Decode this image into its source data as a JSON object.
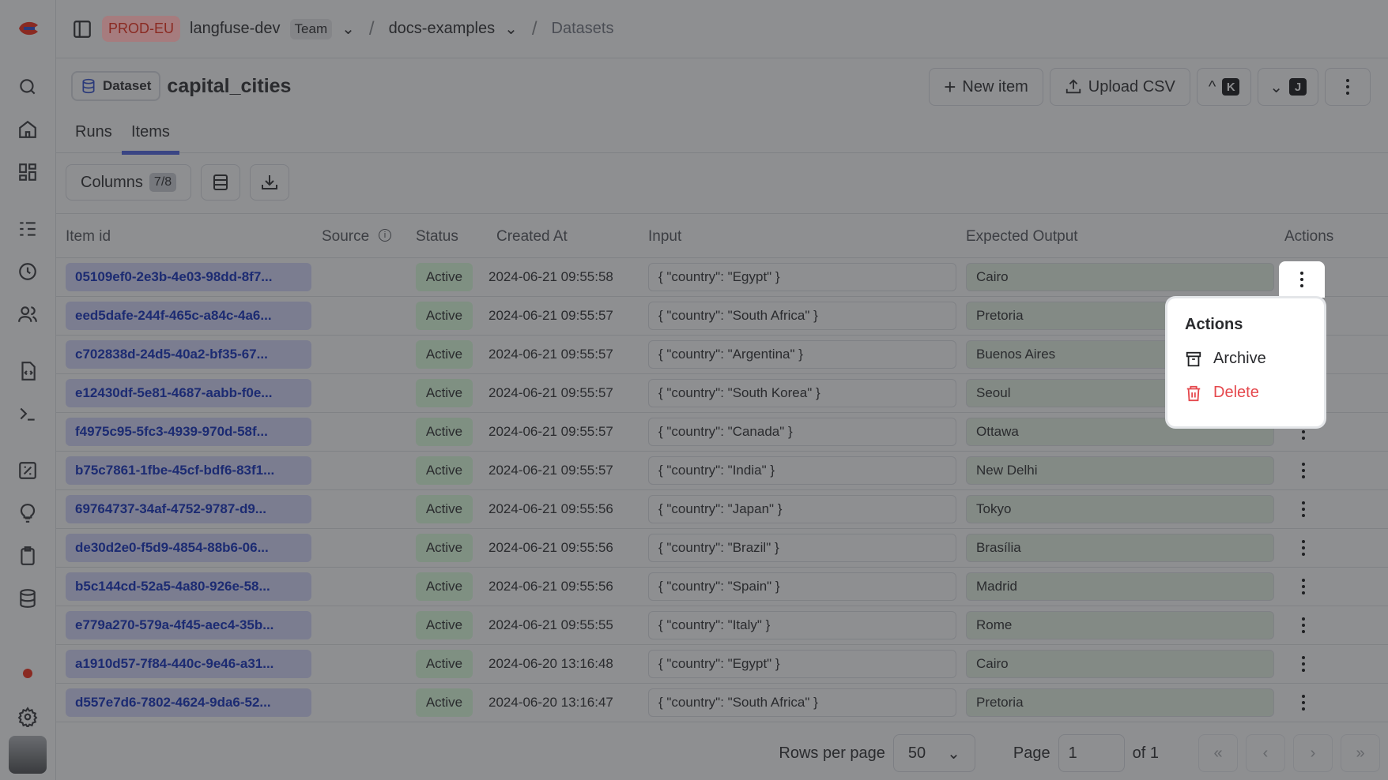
{
  "colors": {
    "accent": "#3a4584",
    "danger": "#e5484d",
    "status_active": "#c9dccc"
  },
  "topbar": {
    "env": "PROD-EU",
    "org": "langfuse-dev",
    "plan": "Team",
    "project": "docs-examples",
    "page": "Datasets"
  },
  "header": {
    "badge": "Dataset",
    "title": "capital_cities",
    "new_item": "New item",
    "upload_csv": "Upload CSV",
    "prev_key": "K",
    "next_key": "J"
  },
  "tabs": [
    {
      "label": "Runs"
    },
    {
      "label": "Items"
    }
  ],
  "toolbar": {
    "columns": "Columns",
    "columns_count": "7/8"
  },
  "table": {
    "headers": [
      "Item id",
      "Source",
      "Status",
      "Created At",
      "Input",
      "Expected Output",
      "Actions"
    ],
    "rows": [
      [
        "05109ef0-2e3b-4e03-98dd-8f7...",
        "Active",
        "2024-06-21 09:55:58",
        "{ \"country\": \"Egypt\" }",
        "Cairo"
      ],
      [
        "eed5dafe-244f-465c-a84c-4a6...",
        "Active",
        "2024-06-21 09:55:57",
        "{ \"country\": \"South Africa\" }",
        "Pretoria"
      ],
      [
        "c702838d-24d5-40a2-bf35-67...",
        "Active",
        "2024-06-21 09:55:57",
        "{ \"country\": \"Argentina\" }",
        "Buenos Aires"
      ],
      [
        "e12430df-5e81-4687-aabb-f0e...",
        "Active",
        "2024-06-21 09:55:57",
        "{ \"country\": \"South Korea\" }",
        "Seoul"
      ],
      [
        "f4975c95-5fc3-4939-970d-58f...",
        "Active",
        "2024-06-21 09:55:57",
        "{ \"country\": \"Canada\" }",
        "Ottawa"
      ],
      [
        "b75c7861-1fbe-45cf-bdf6-83f1...",
        "Active",
        "2024-06-21 09:55:57",
        "{ \"country\": \"India\" }",
        "New Delhi"
      ],
      [
        "69764737-34af-4752-9787-d9...",
        "Active",
        "2024-06-21 09:55:56",
        "{ \"country\": \"Japan\" }",
        "Tokyo"
      ],
      [
        "de30d2e0-f5d9-4854-88b6-06...",
        "Active",
        "2024-06-21 09:55:56",
        "{ \"country\": \"Brazil\" }",
        "Brasília"
      ],
      [
        "b5c144cd-52a5-4a80-926e-58...",
        "Active",
        "2024-06-21 09:55:56",
        "{ \"country\": \"Spain\" }",
        "Madrid"
      ],
      [
        "e779a270-579a-4f45-aec4-35b...",
        "Active",
        "2024-06-21 09:55:55",
        "{ \"country\": \"Italy\" }",
        "Rome"
      ],
      [
        "a1910d57-7f84-440c-9e46-a31...",
        "Active",
        "2024-06-20 13:16:48",
        "{ \"country\": \"Egypt\" }",
        "Cairo"
      ],
      [
        "d557e7d6-7802-4624-9da6-52...",
        "Active",
        "2024-06-20 13:16:47",
        "{ \"country\": \"South Africa\" }",
        "Pretoria"
      ]
    ]
  },
  "menu": {
    "title": "Actions",
    "archive": "Archive",
    "delete": "Delete"
  },
  "footer": {
    "rows_per_page": "Rows per page",
    "rows_value": "50",
    "page_label": "Page",
    "page_value": "1",
    "of": "of 1"
  }
}
